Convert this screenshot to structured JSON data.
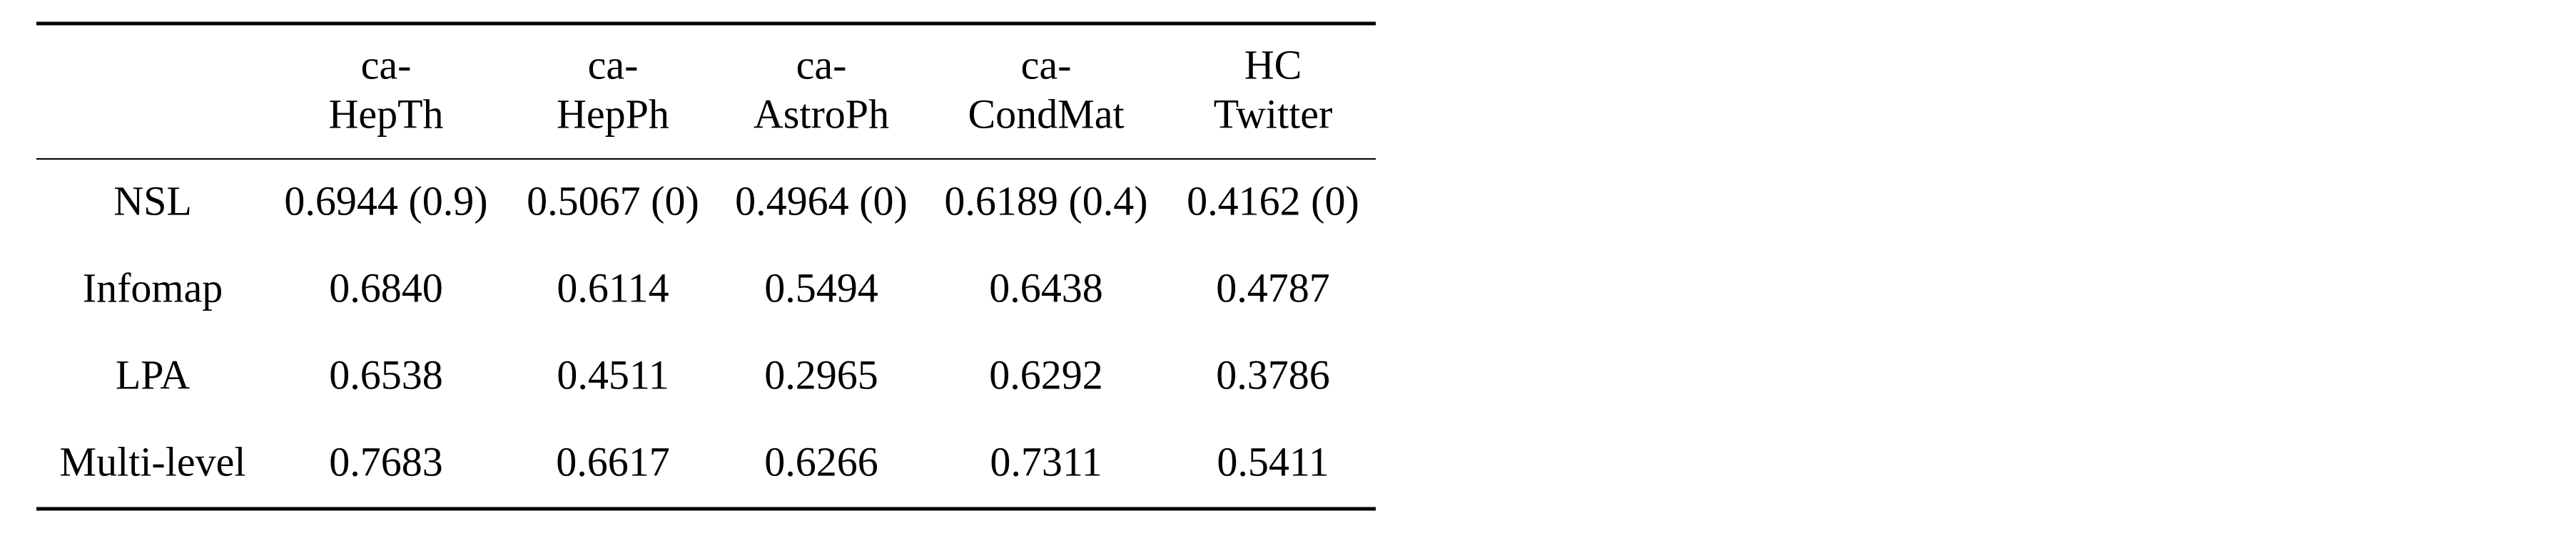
{
  "table": {
    "header": [
      [
        "ca-",
        "HepTh"
      ],
      [
        "ca-",
        "HepPh"
      ],
      [
        "ca-",
        "AstroPh"
      ],
      [
        "ca-",
        "CondMat"
      ],
      [
        "HC",
        "Twitter"
      ]
    ],
    "rows": [
      [
        "NSL",
        "0.6944 (0.9)",
        "0.5067 (0)",
        "0.4964 (0)",
        "0.6189 (0.4)",
        "0.4162 (0)"
      ],
      [
        "Infomap",
        "0.6840",
        "0.6114",
        "0.5494",
        "0.6438",
        "0.4787"
      ],
      [
        "LPA",
        "0.6538",
        "0.4511",
        "0.2965",
        "0.6292",
        "0.3786"
      ],
      [
        "Multi-level",
        "0.7683",
        "0.6617",
        "0.6266",
        "0.7311",
        "0.5411"
      ]
    ]
  }
}
